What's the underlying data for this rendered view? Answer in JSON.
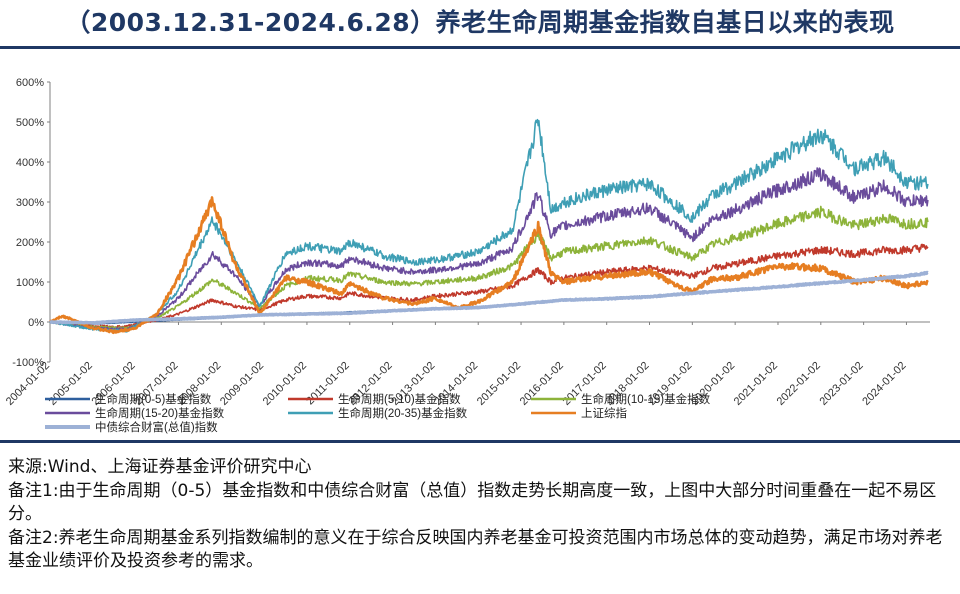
{
  "title": "（2003.12.31-2024.6.28）养老生命周期基金指数自基日以来的表现",
  "notes": {
    "source": "来源:Wind、上海证券基金评价研究中心",
    "note1": "备注1:由于生命周期（0-5）基金指数和中债综合财富（总值）指数走势长期高度一致，上图中大部分时间重叠在一起不易区分。",
    "note2": "备注2:养老生命周期基金系列指数编制的意义在于综合反映国内养老基金可投资范围内市场总体的变动趋势，满足市场对养老基金业绩评价及投资参考的需求。"
  },
  "chart_data": {
    "type": "line",
    "x_start": "2003-12-31",
    "x_end": "2024-06-28",
    "y_unit": "%",
    "ylim": [
      -100,
      600
    ],
    "yticks": [
      "600%",
      "500%",
      "400%",
      "300%",
      "200%",
      "100%",
      "0%",
      "-100%"
    ],
    "xticks": [
      "2004-01-02",
      "2005-01-02",
      "2006-01-02",
      "2007-01-02",
      "2008-01-02",
      "2009-01-02",
      "2010-01-02",
      "2011-01-02",
      "2012-01-02",
      "2013-01-02",
      "2014-01-02",
      "2015-01-02",
      "2016-01-02",
      "2017-01-02",
      "2018-01-02",
      "2019-01-02",
      "2020-01-02",
      "2021-01-02",
      "2022-01-02",
      "2023-01-02",
      "2024-01-02"
    ],
    "grid": false,
    "legend_position": "bottom",
    "series": [
      {
        "name": "生命周期(0-5)基金指数",
        "color": "#2e5f9e",
        "points": [
          [
            2004.0,
            0
          ],
          [
            2005.0,
            -5
          ],
          [
            2006.0,
            0
          ],
          [
            2007.0,
            5
          ],
          [
            2008.0,
            10
          ],
          [
            2009.0,
            18
          ],
          [
            2010.0,
            22
          ],
          [
            2011.0,
            25
          ],
          [
            2012.0,
            30
          ],
          [
            2013.0,
            35
          ],
          [
            2014.0,
            38
          ],
          [
            2015.0,
            45
          ],
          [
            2016.0,
            55
          ],
          [
            2017.0,
            60
          ],
          [
            2018.0,
            65
          ],
          [
            2019.0,
            72
          ],
          [
            2020.0,
            80
          ],
          [
            2021.0,
            88
          ],
          [
            2022.0,
            97
          ],
          [
            2023.0,
            105
          ],
          [
            2024.0,
            115
          ],
          [
            2024.5,
            122
          ]
        ]
      },
      {
        "name": "生命周期(5-10)基金指数",
        "color": "#c0392b",
        "points": [
          [
            2004.0,
            0
          ],
          [
            2005.0,
            -10
          ],
          [
            2005.7,
            -12
          ],
          [
            2006.5,
            5
          ],
          [
            2007.0,
            20
          ],
          [
            2007.8,
            55
          ],
          [
            2008.3,
            40
          ],
          [
            2008.9,
            30
          ],
          [
            2009.5,
            55
          ],
          [
            2010.0,
            65
          ],
          [
            2010.8,
            60
          ],
          [
            2011.0,
            72
          ],
          [
            2011.8,
            60
          ],
          [
            2012.5,
            55
          ],
          [
            2013.0,
            65
          ],
          [
            2014.0,
            75
          ],
          [
            2014.8,
            90
          ],
          [
            2015.4,
            130
          ],
          [
            2015.7,
            100
          ],
          [
            2016.0,
            110
          ],
          [
            2017.0,
            125
          ],
          [
            2018.0,
            135
          ],
          [
            2019.0,
            115
          ],
          [
            2019.5,
            135
          ],
          [
            2020.0,
            145
          ],
          [
            2021.0,
            165
          ],
          [
            2022.0,
            180
          ],
          [
            2022.8,
            170
          ],
          [
            2023.5,
            180
          ],
          [
            2024.0,
            180
          ],
          [
            2024.5,
            188
          ]
        ]
      },
      {
        "name": "生命周期(10-15)基金指数",
        "color": "#8db33a",
        "points": [
          [
            2004.0,
            0
          ],
          [
            2005.0,
            -12
          ],
          [
            2005.8,
            -15
          ],
          [
            2006.5,
            10
          ],
          [
            2007.0,
            40
          ],
          [
            2007.8,
            105
          ],
          [
            2008.3,
            75
          ],
          [
            2008.9,
            35
          ],
          [
            2009.5,
            90
          ],
          [
            2010.0,
            110
          ],
          [
            2010.8,
            105
          ],
          [
            2011.0,
            120
          ],
          [
            2011.8,
            100
          ],
          [
            2012.5,
            95
          ],
          [
            2013.0,
            100
          ],
          [
            2014.0,
            110
          ],
          [
            2014.8,
            140
          ],
          [
            2015.4,
            220
          ],
          [
            2015.7,
            160
          ],
          [
            2016.0,
            175
          ],
          [
            2017.0,
            190
          ],
          [
            2018.0,
            205
          ],
          [
            2019.0,
            160
          ],
          [
            2019.5,
            195
          ],
          [
            2020.0,
            210
          ],
          [
            2021.0,
            245
          ],
          [
            2022.0,
            275
          ],
          [
            2022.8,
            240
          ],
          [
            2023.5,
            260
          ],
          [
            2024.0,
            245
          ],
          [
            2024.5,
            250
          ]
        ]
      },
      {
        "name": "生命周期(15-20)基金指数",
        "color": "#6a4c9c",
        "points": [
          [
            2004.0,
            0
          ],
          [
            2005.0,
            -15
          ],
          [
            2005.8,
            -18
          ],
          [
            2006.5,
            15
          ],
          [
            2007.0,
            60
          ],
          [
            2007.8,
            170
          ],
          [
            2008.3,
            120
          ],
          [
            2008.9,
            40
          ],
          [
            2009.5,
            130
          ],
          [
            2010.0,
            150
          ],
          [
            2010.8,
            140
          ],
          [
            2011.0,
            160
          ],
          [
            2011.8,
            135
          ],
          [
            2012.5,
            125
          ],
          [
            2013.0,
            130
          ],
          [
            2014.0,
            145
          ],
          [
            2014.8,
            185
          ],
          [
            2015.4,
            320
          ],
          [
            2015.7,
            220
          ],
          [
            2016.0,
            240
          ],
          [
            2017.0,
            265
          ],
          [
            2018.0,
            285
          ],
          [
            2019.0,
            210
          ],
          [
            2019.5,
            260
          ],
          [
            2020.0,
            280
          ],
          [
            2021.0,
            330
          ],
          [
            2022.0,
            370
          ],
          [
            2022.8,
            310
          ],
          [
            2023.5,
            340
          ],
          [
            2024.0,
            300
          ],
          [
            2024.5,
            305
          ]
        ]
      },
      {
        "name": "生命周期(20-35)基金指数",
        "color": "#3f9fb5",
        "points": [
          [
            2004.0,
            0
          ],
          [
            2005.0,
            -18
          ],
          [
            2005.8,
            -22
          ],
          [
            2006.5,
            20
          ],
          [
            2007.0,
            80
          ],
          [
            2007.8,
            255
          ],
          [
            2008.3,
            160
          ],
          [
            2008.9,
            40
          ],
          [
            2009.5,
            170
          ],
          [
            2010.0,
            190
          ],
          [
            2010.8,
            175
          ],
          [
            2011.0,
            200
          ],
          [
            2011.8,
            165
          ],
          [
            2012.5,
            150
          ],
          [
            2013.0,
            155
          ],
          [
            2014.0,
            175
          ],
          [
            2014.8,
            230
          ],
          [
            2015.4,
            510
          ],
          [
            2015.7,
            280
          ],
          [
            2016.0,
            300
          ],
          [
            2017.0,
            330
          ],
          [
            2018.0,
            345
          ],
          [
            2019.0,
            260
          ],
          [
            2019.5,
            320
          ],
          [
            2020.0,
            345
          ],
          [
            2021.0,
            410
          ],
          [
            2022.0,
            470
          ],
          [
            2022.8,
            385
          ],
          [
            2023.5,
            410
          ],
          [
            2024.0,
            350
          ],
          [
            2024.5,
            345
          ]
        ]
      },
      {
        "name": "上证综指",
        "color": "#e67e22",
        "points": [
          [
            2004.0,
            0
          ],
          [
            2004.3,
            15
          ],
          [
            2005.0,
            -15
          ],
          [
            2005.5,
            -25
          ],
          [
            2006.0,
            -15
          ],
          [
            2006.5,
            20
          ],
          [
            2007.0,
            110
          ],
          [
            2007.8,
            305
          ],
          [
            2008.3,
            150
          ],
          [
            2008.9,
            20
          ],
          [
            2009.5,
            110
          ],
          [
            2010.0,
            100
          ],
          [
            2010.8,
            70
          ],
          [
            2011.0,
            95
          ],
          [
            2011.8,
            60
          ],
          [
            2012.5,
            45
          ],
          [
            2013.0,
            60
          ],
          [
            2013.5,
            35
          ],
          [
            2014.0,
            50
          ],
          [
            2014.8,
            100
          ],
          [
            2015.4,
            240
          ],
          [
            2015.7,
            120
          ],
          [
            2016.0,
            100
          ],
          [
            2017.0,
            115
          ],
          [
            2018.0,
            125
          ],
          [
            2019.0,
            75
          ],
          [
            2019.5,
            110
          ],
          [
            2020.0,
            110
          ],
          [
            2021.0,
            140
          ],
          [
            2022.0,
            135
          ],
          [
            2022.8,
            100
          ],
          [
            2023.5,
            110
          ],
          [
            2024.0,
            90
          ],
          [
            2024.5,
            100
          ]
        ]
      },
      {
        "name": "中债综合财富(总值)指数",
        "color": "#9db1d6",
        "points": [
          [
            2004.0,
            0
          ],
          [
            2005.0,
            -2
          ],
          [
            2006.0,
            5
          ],
          [
            2007.0,
            8
          ],
          [
            2008.0,
            12
          ],
          [
            2009.0,
            18
          ],
          [
            2010.0,
            20
          ],
          [
            2011.0,
            22
          ],
          [
            2012.0,
            28
          ],
          [
            2013.0,
            33
          ],
          [
            2014.0,
            36
          ],
          [
            2015.0,
            45
          ],
          [
            2016.0,
            55
          ],
          [
            2017.0,
            58
          ],
          [
            2018.0,
            63
          ],
          [
            2019.0,
            72
          ],
          [
            2020.0,
            80
          ],
          [
            2021.0,
            88
          ],
          [
            2022.0,
            97
          ],
          [
            2023.0,
            105
          ],
          [
            2024.0,
            115
          ],
          [
            2024.5,
            123
          ]
        ]
      }
    ]
  }
}
